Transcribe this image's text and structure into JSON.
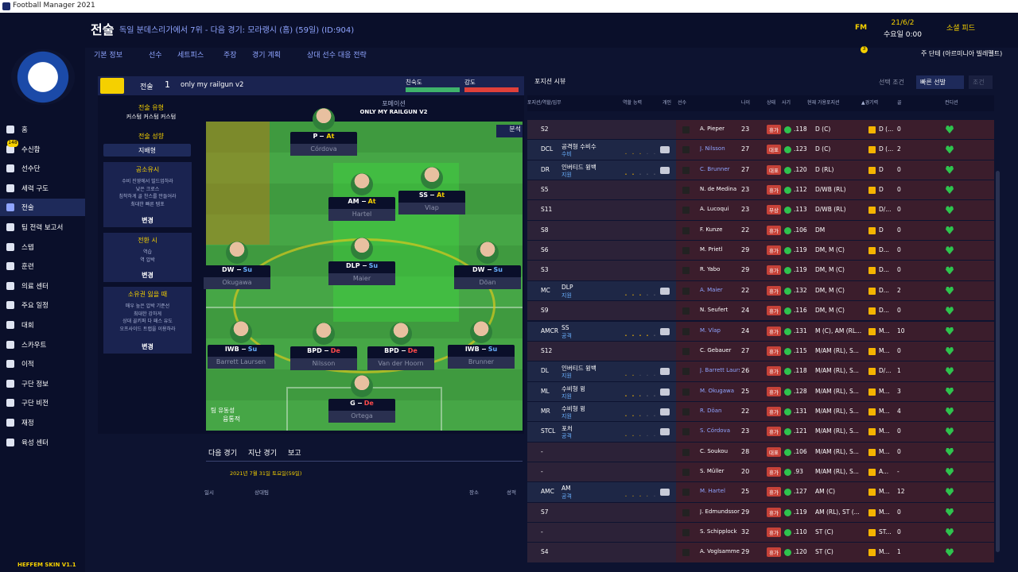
{
  "window": {
    "title": "Football Manager 2021"
  },
  "header": {
    "title": "전술",
    "subtitle": "독일 분데스리가에서 7위 - 다음 경기: 모라랭시 (홈) (59일) (ID:904)",
    "date": "21/6/2",
    "time": "수요일 0:00",
    "social": "소셜 피드",
    "manager": "주 단테 (아르미니아 빌레펠트)",
    "badge": "3",
    "brand": "FM"
  },
  "tabs": [
    "기본 정보",
    "선수",
    "세트피스",
    "주장",
    "경기 계획",
    "상대 선수 대응 전략"
  ],
  "sidebar": {
    "badge": "148",
    "active": 4,
    "items": [
      "홈",
      "수신함",
      "선수단",
      "세력 구도",
      "전술",
      "팀 전력 보고서",
      "스텝",
      "훈련",
      "의료 센터",
      "주요 일정",
      "대회",
      "스카우트",
      "이적",
      "구단 정보",
      "구단 비전",
      "재정",
      "육성 센터"
    ]
  },
  "skin": "HEFFEM SKIN V1.1",
  "tactic": {
    "label": "전술",
    "slot": "1",
    "name": "only my railgun v2",
    "familiarity": "친숙도",
    "intensity": "강도",
    "formation_label": "포메이션",
    "formation": "ONLY MY RAILGUN V2",
    "analysis": "분석",
    "style_label": "전술 유형",
    "style": "커스텀 커스텀 커스텀",
    "mentality_label": "전술 성향",
    "mentality": "지배형",
    "change": "변경",
    "boxes": [
      {
        "title": "공소유시",
        "lines": [
          "수비 진영에서 빌드업하라",
          "낮은 크로스",
          "침착하게 골 찬스를 만들어라",
          "최대한 빠른 템포"
        ]
      },
      {
        "title": "전환 시",
        "lines": [
          "역습",
          "역 압박"
        ]
      },
      {
        "title": "소유권 잃을 때",
        "lines": [
          "매우 높은 압박 기준선",
          "최대한 강하게",
          "상대 골키퍼 다 패스 유도",
          "오프사이드 트랩을 이용하라"
        ]
      }
    ],
    "fluidity_label": "팀 유동성",
    "fluidity": "융통적"
  },
  "pitch": [
    {
      "role": "P",
      "duty": "At",
      "name": "Córdova"
    },
    {
      "role": "AM",
      "duty": "At",
      "name": "Hartel"
    },
    {
      "role": "SS",
      "duty": "At",
      "name": "Vlap"
    },
    {
      "role": "DW",
      "duty": "Su",
      "name": "Okugawa"
    },
    {
      "role": "DLP",
      "duty": "Su",
      "name": "Maier"
    },
    {
      "role": "DW",
      "duty": "Su",
      "name": "Döan"
    },
    {
      "role": "IWB",
      "duty": "Su",
      "name": "Barrett Laursen"
    },
    {
      "role": "BPD",
      "duty": "De",
      "name": "Nilsson"
    },
    {
      "role": "BPD",
      "duty": "De",
      "name": "Van der Hoorn"
    },
    {
      "role": "IWB",
      "duty": "Su",
      "name": "Brunner"
    },
    {
      "role": "G",
      "duty": "De",
      "name": "Ortega"
    }
  ],
  "fixtures": {
    "tabs": [
      "다음 경기",
      "지난 경기",
      "보고"
    ],
    "date": "2021년 7월 31일 토요일(59일)",
    "columns": [
      "일시",
      "상대팀",
      "장소",
      "성적"
    ]
  },
  "squad": {
    "view": "포지션 시뷰",
    "filter_label": "선택 조건",
    "quick": "빠른 선발",
    "cond": "조건",
    "columns": [
      "포지션/역할/임무",
      "역할 능력",
      "개인",
      "선수",
      "나이",
      "상태",
      "사기",
      "현재 가용포지션",
      "▲경기력",
      "골",
      "컨디션"
    ],
    "rows": [
      {
        "pos": "S2",
        "player": "A. Pieper",
        "age": 23,
        "status": "휴가",
        "rating": ".118",
        "positions": "D (C)",
        "pref": "D (...",
        "goals": "0"
      },
      {
        "pos": "DCL",
        "role": "공격형 수비수",
        "duty": "수비",
        "stars": 3,
        "player": "J. Nilsson",
        "age": 27,
        "status": "대표",
        "rating": ".123",
        "positions": "D (C)",
        "pref": "D (...",
        "goals": "2"
      },
      {
        "pos": "DR",
        "role": "인버티드 윙백",
        "duty": "지원",
        "stars": 2,
        "player": "C. Brunner",
        "age": 27,
        "status": "대표",
        "rating": ".120",
        "positions": "D (RL)",
        "pref": "D",
        "goals": "0"
      },
      {
        "pos": "S5",
        "player": "N. de Medina",
        "age": 23,
        "status": "휴가",
        "rating": ".112",
        "positions": "D/WB (RL)",
        "pref": "D",
        "goals": "0"
      },
      {
        "pos": "S11",
        "player": "A. Lucoqui",
        "age": 23,
        "status": "부상",
        "rating": ".113",
        "positions": "D/WB (RL)",
        "pref": "D/...",
        "goals": "0"
      },
      {
        "pos": "S8",
        "player": "F. Kunze",
        "age": 22,
        "status": "휴가",
        "rating": ".106",
        "positions": "DM",
        "pref": "D",
        "goals": "0"
      },
      {
        "pos": "S6",
        "player": "M. Prietl",
        "age": 29,
        "status": "휴가",
        "rating": ".119",
        "positions": "DM, M (C)",
        "pref": "D...",
        "goals": "0"
      },
      {
        "pos": "S3",
        "player": "R. Yabo",
        "age": 29,
        "status": "휴가",
        "rating": ".119",
        "positions": "DM, M (C)",
        "pref": "D...",
        "goals": "0"
      },
      {
        "pos": "MC",
        "role": "DLP",
        "duty": "지원",
        "stars": 3,
        "player": "A. Maier",
        "age": 22,
        "status": "휴가",
        "rating": ".132",
        "positions": "DM, M (C)",
        "pref": "D...",
        "goals": "2"
      },
      {
        "pos": "S9",
        "player": "N. Seufert",
        "age": 24,
        "status": "휴가",
        "rating": ".116",
        "positions": "DM, M (C)",
        "pref": "D...",
        "goals": "0"
      },
      {
        "pos": "AMCR",
        "role": "SS",
        "duty": "공격",
        "stars": 4,
        "player": "M. Vlap",
        "age": 24,
        "status": "휴가",
        "rating": ".131",
        "positions": "M (C), AM (RL...",
        "pref": "M...",
        "goals": "10"
      },
      {
        "pos": "S12",
        "player": "C. Gebauer",
        "age": 27,
        "status": "휴가",
        "rating": ".115",
        "positions": "M/AM (RL), S...",
        "pref": "M...",
        "goals": "0"
      },
      {
        "pos": "DL",
        "role": "인버티드 윙백",
        "duty": "지원",
        "stars": 2,
        "player": "J. Barrett Laurs..",
        "age": 26,
        "status": "휴가",
        "rating": ".118",
        "positions": "M/AM (RL), S...",
        "pref": "D/...",
        "goals": "1"
      },
      {
        "pos": "ML",
        "role": "수비형 윙",
        "duty": "지원",
        "stars": 2.5,
        "player": "M. Okugawa",
        "age": 25,
        "status": "휴가",
        "rating": ".128",
        "positions": "M/AM (RL), S...",
        "pref": "M...",
        "goals": "3"
      },
      {
        "pos": "MR",
        "role": "수비형 윙",
        "duty": "지원",
        "stars": 2.5,
        "player": "R. Döan",
        "age": 22,
        "status": "휴가",
        "rating": ".131",
        "positions": "M/AM (RL), S...",
        "pref": "M...",
        "goals": "4"
      },
      {
        "pos": "STCL",
        "role": "포처",
        "duty": "공격",
        "stars": 2.5,
        "player": "S. Córdova",
        "age": 23,
        "status": "휴가",
        "rating": ".121",
        "positions": "M/AM (RL), S...",
        "pref": "M...",
        "goals": "0"
      },
      {
        "pos": "-",
        "player": "C. Soukou",
        "age": 28,
        "status": "대표",
        "rating": ".106",
        "positions": "M/AM (RL), S...",
        "pref": "M...",
        "goals": "0"
      },
      {
        "pos": "-",
        "player": "S. Müller",
        "age": 20,
        "status": "휴가",
        "rating": ".93",
        "positions": "M/AM (RL), S...",
        "pref": "A...",
        "goals": "-"
      },
      {
        "pos": "AMC",
        "role": "AM",
        "duty": "공격",
        "stars": 3.5,
        "player": "M. Hartel",
        "age": 25,
        "status": "휴가",
        "rating": ".127",
        "positions": "AM (C)",
        "pref": "M...",
        "goals": "12"
      },
      {
        "pos": "S7",
        "player": "J. Edmundsson",
        "age": 29,
        "status": "휴가",
        "rating": ".119",
        "positions": "AM (RL), ST (...",
        "pref": "M...",
        "goals": "0"
      },
      {
        "pos": "-",
        "player": "S. Schipplock",
        "age": 32,
        "status": "휴가",
        "rating": ".110",
        "positions": "ST (C)",
        "pref": "ST...",
        "goals": "0"
      },
      {
        "pos": "S4",
        "player": "A. Voglsammer",
        "age": 29,
        "status": "휴가",
        "rating": ".120",
        "positions": "ST (C)",
        "pref": "M...",
        "goals": "1"
      }
    ]
  }
}
